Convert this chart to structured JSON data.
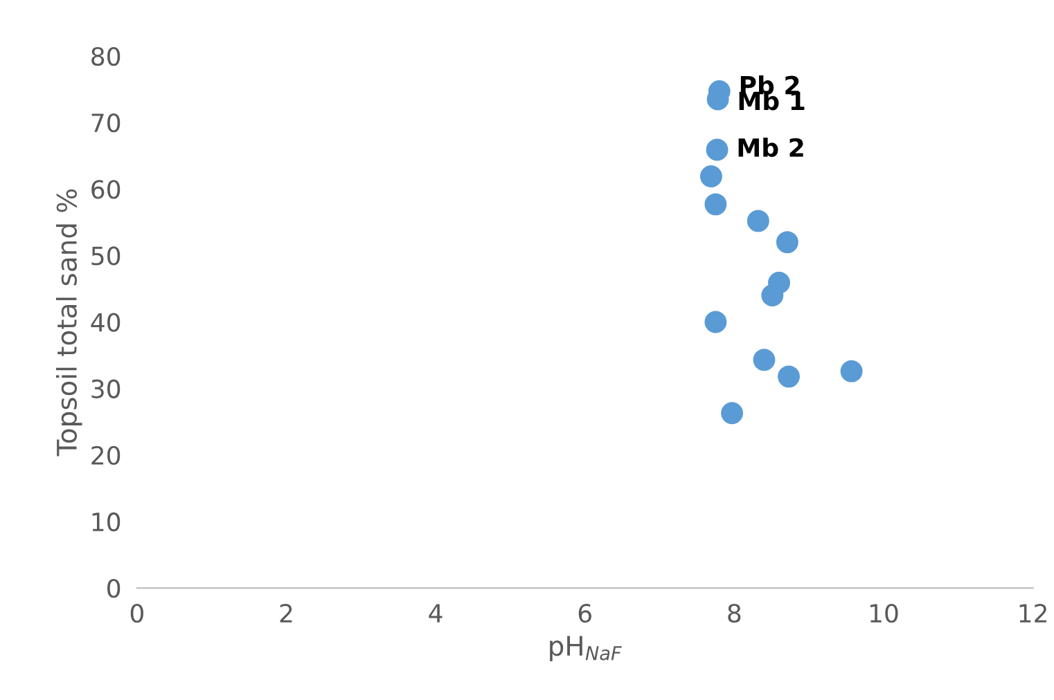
{
  "chart_data": {
    "type": "scatter",
    "xlabel": "pH$_{NaF}$",
    "ylabel": "Topsoil total sand %",
    "xlim": [
      0,
      12
    ],
    "ylim": [
      0,
      80
    ],
    "xticks": [
      0,
      2,
      4,
      6,
      8,
      10,
      12
    ],
    "yticks": [
      0,
      10,
      20,
      30,
      40,
      50,
      60,
      70,
      80
    ],
    "grid": false,
    "legend": false,
    "marker": "circle",
    "series": [
      {
        "color": "#5b9bd5",
        "x": [
          7.8,
          7.78,
          7.77,
          7.69,
          7.75,
          8.32,
          8.71,
          8.6,
          8.51,
          7.75,
          8.4,
          8.73,
          9.57,
          7.97
        ],
        "values": [
          74.7,
          73.5,
          65.9,
          61.9,
          57.7,
          55.2,
          52.0,
          45.9,
          44.0,
          40.0,
          34.3,
          31.8,
          32.6,
          26.3
        ]
      }
    ],
    "annotations": [
      {
        "text": "Pb 2",
        "x": 7.8,
        "y": 74.7
      },
      {
        "text": "Mb 1",
        "x": 7.78,
        "y": 73.5
      },
      {
        "text": "Mb 2",
        "x": 7.77,
        "y": 65.9
      }
    ]
  }
}
